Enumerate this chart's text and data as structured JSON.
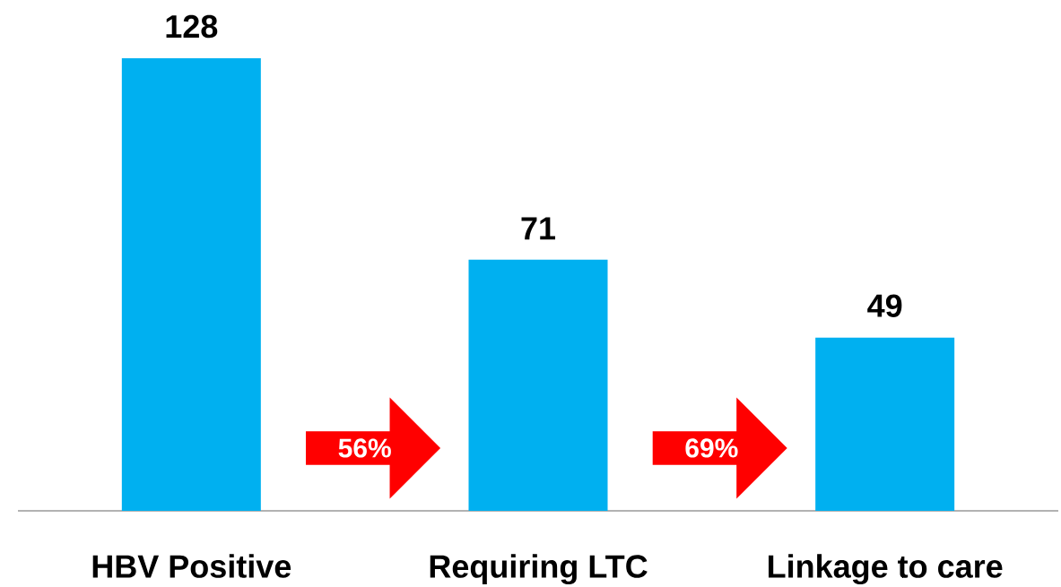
{
  "chart_data": {
    "type": "bar",
    "categories": [
      "HBV Positive",
      "Requiring LTC",
      "Linkage to care"
    ],
    "values": [
      128,
      71,
      49
    ],
    "color": "#00b0f0",
    "data_labels": true,
    "annotations": [
      "56%",
      "69%"
    ]
  }
}
